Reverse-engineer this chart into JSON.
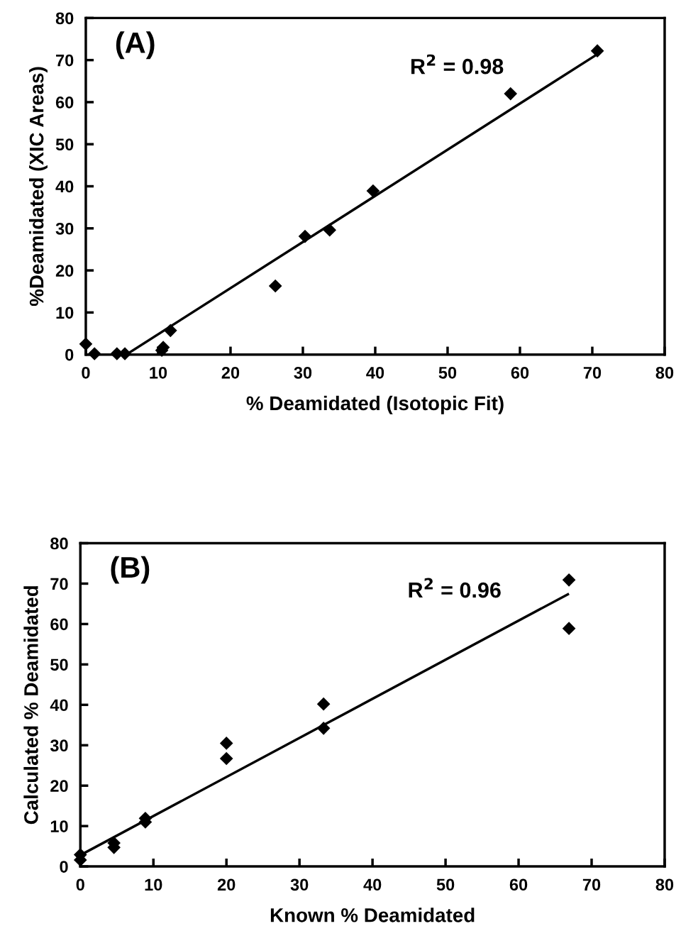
{
  "chart_data": [
    {
      "type": "scatter",
      "xlabel": "% Deamidated (Isotopic Fit)",
      "ylabel": "%Deamidated (XIC Areas)",
      "xlim": [
        0,
        80
      ],
      "ylim": [
        0,
        80
      ],
      "xticks": [
        0,
        10,
        20,
        30,
        40,
        50,
        60,
        70,
        80
      ],
      "yticks": [
        0,
        10,
        20,
        30,
        40,
        50,
        60,
        70,
        80
      ],
      "grid": false,
      "annotations": [
        "(A)",
        "R$^{2}$ = 0.98"
      ],
      "series": [
        {
          "color": "#000000",
          "marker": "diamond",
          "x": [
            0,
            1.2,
            4.3,
            5.4,
            10.5,
            10.7,
            11.7,
            26.2,
            30.3,
            33.7,
            39.7,
            58.7,
            70.7
          ],
          "values": [
            2.5,
            0.2,
            0.2,
            0.2,
            1.0,
            1.7,
            5.7,
            16.3,
            28.1,
            29.6,
            38.9,
            62,
            72.2
          ]
        },
        {
          "type": "line",
          "color": "#000000",
          "x": [
            5.6,
            70.7
          ],
          "values": [
            0,
            71.4
          ]
        }
      ]
    },
    {
      "type": "scatter",
      "xlabel": "Known % Deamidated",
      "ylabel": "Calculated % Deamidated",
      "xlim": [
        0,
        80
      ],
      "ylim": [
        0,
        80
      ],
      "xticks": [
        0,
        10,
        20,
        30,
        40,
        50,
        60,
        70,
        80
      ],
      "yticks": [
        0,
        10,
        20,
        30,
        40,
        50,
        60,
        70,
        80
      ],
      "grid": false,
      "annotations": [
        "(B)",
        "R$^{2}$ = 0.96"
      ],
      "series": [
        {
          "color": "#000000",
          "marker": "diamond",
          "x": [
            0,
            0,
            4.6,
            4.6,
            8.9,
            8.9,
            20,
            20,
            33.3,
            33.3,
            66.9,
            66.9
          ],
          "values": [
            2.9,
            1.6,
            5.8,
            4.7,
            11.9,
            11,
            30.5,
            26.7,
            40.2,
            34.2,
            70.9,
            58.9
          ]
        },
        {
          "type": "line",
          "color": "#000000",
          "x": [
            0,
            66.9
          ],
          "values": [
            2.8,
            67.5
          ]
        }
      ]
    }
  ]
}
